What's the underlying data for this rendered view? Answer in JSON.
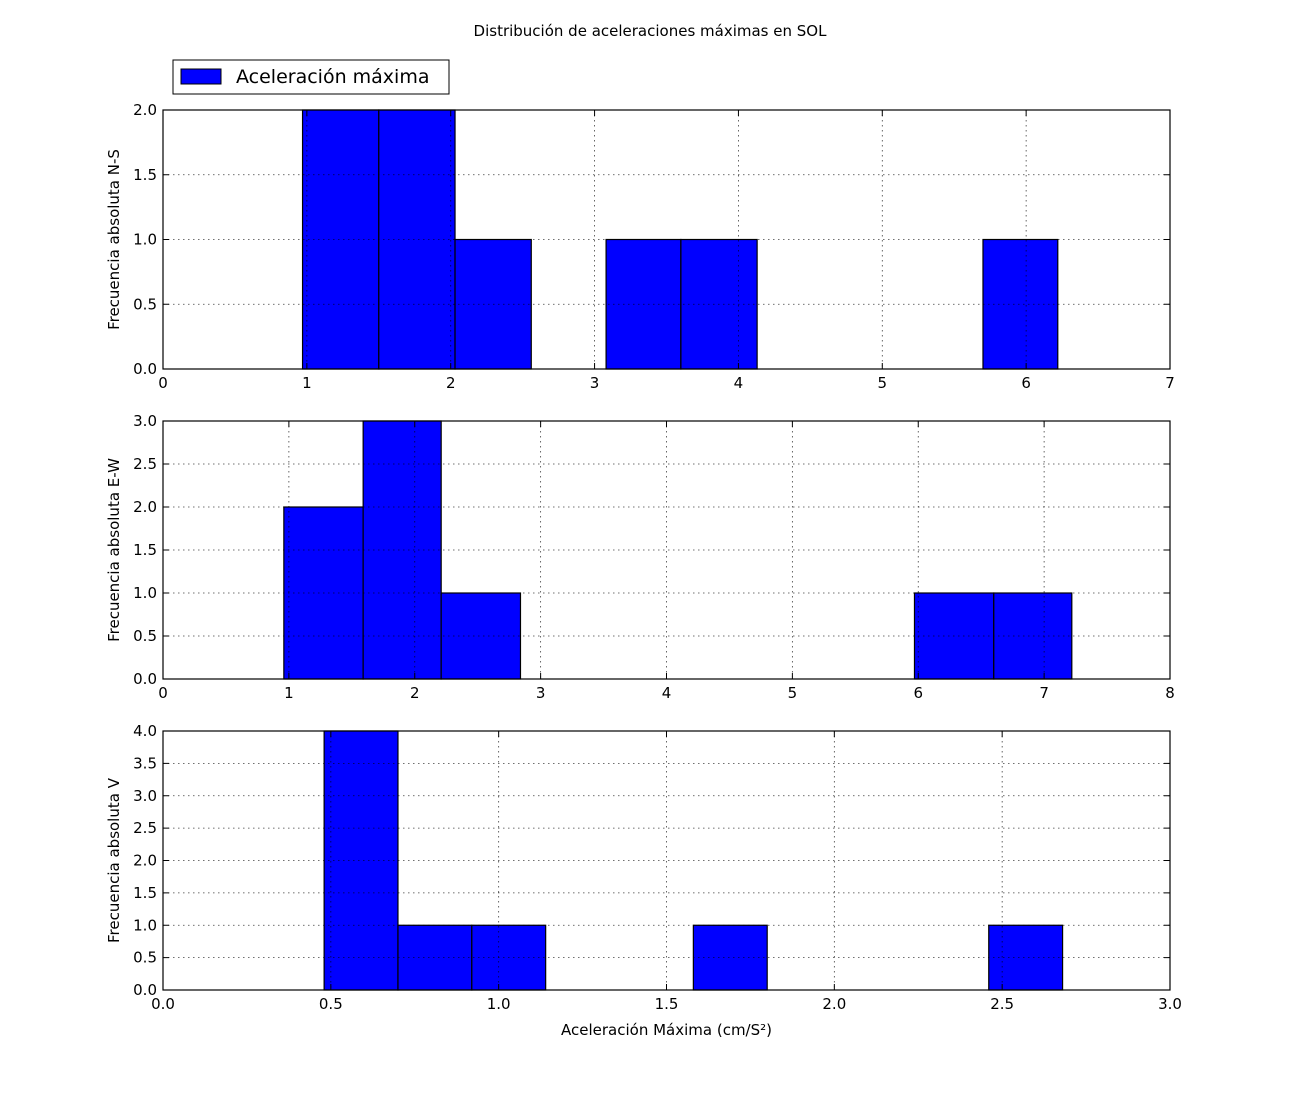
{
  "chart_data": {
    "title": "Distribución de aceleraciones máximas en SOL",
    "type": "bar",
    "legend": {
      "label": "Aceleración máxima",
      "placement": "top-left (outside, above first panel)",
      "color": "#0000ff"
    },
    "bar_color": "#0000ff",
    "edge_color": "#000000",
    "grid": true,
    "panels": [
      {
        "id": "ns",
        "ylabel": "Frecuencia absoluta N-S",
        "xlabel": "",
        "xlim": [
          0,
          7
        ],
        "ylim": [
          0,
          2
        ],
        "xticks": [
          "0",
          "1",
          "2",
          "3",
          "4",
          "5",
          "6",
          "7"
        ],
        "xtick_values": [
          0,
          1,
          2,
          3,
          4,
          5,
          6,
          7
        ],
        "yticks": [
          "0.0",
          "0.5",
          "1.0",
          "1.5",
          "2.0"
        ],
        "ytick_values": [
          0,
          0.5,
          1,
          1.5,
          2
        ],
        "bins": [
          {
            "x0": 0.97,
            "x1": 1.5,
            "value": 2
          },
          {
            "x0": 1.5,
            "x1": 2.03,
            "value": 2
          },
          {
            "x0": 2.03,
            "x1": 2.56,
            "value": 1
          },
          {
            "x0": 2.56,
            "x1": 3.08,
            "value": 0
          },
          {
            "x0": 3.08,
            "x1": 3.6,
            "value": 1
          },
          {
            "x0": 3.6,
            "x1": 4.13,
            "value": 1
          },
          {
            "x0": 4.13,
            "x1": 4.66,
            "value": 0
          },
          {
            "x0": 4.66,
            "x1": 5.18,
            "value": 0
          },
          {
            "x0": 5.18,
            "x1": 5.7,
            "value": 0
          },
          {
            "x0": 5.7,
            "x1": 6.22,
            "value": 1
          }
        ]
      },
      {
        "id": "ew",
        "ylabel": "Frecuencia absoluta E-W",
        "xlabel": "",
        "xlim": [
          0,
          8
        ],
        "ylim": [
          0,
          3
        ],
        "xticks": [
          "0",
          "1",
          "2",
          "3",
          "4",
          "5",
          "6",
          "7",
          "8"
        ],
        "xtick_values": [
          0,
          1,
          2,
          3,
          4,
          5,
          6,
          7,
          8
        ],
        "yticks": [
          "0.0",
          "0.5",
          "1.0",
          "1.5",
          "2.0",
          "2.5",
          "3.0"
        ],
        "ytick_values": [
          0,
          0.5,
          1,
          1.5,
          2,
          2.5,
          3
        ],
        "bins": [
          {
            "x0": 0.96,
            "x1": 1.59,
            "value": 2
          },
          {
            "x0": 1.59,
            "x1": 2.21,
            "value": 3
          },
          {
            "x0": 2.21,
            "x1": 2.84,
            "value": 1
          },
          {
            "x0": 2.84,
            "x1": 3.46,
            "value": 0
          },
          {
            "x0": 3.46,
            "x1": 4.09,
            "value": 0
          },
          {
            "x0": 4.09,
            "x1": 4.72,
            "value": 0
          },
          {
            "x0": 4.72,
            "x1": 5.34,
            "value": 0
          },
          {
            "x0": 5.34,
            "x1": 5.97,
            "value": 0
          },
          {
            "x0": 5.97,
            "x1": 6.6,
            "value": 1
          },
          {
            "x0": 6.6,
            "x1": 7.22,
            "value": 1
          }
        ]
      },
      {
        "id": "v",
        "ylabel": "Frecuencia absoluta V",
        "xlabel": "Aceleración Máxima (cm/S²)",
        "xlim": [
          0,
          3
        ],
        "ylim": [
          0,
          4
        ],
        "xticks": [
          "0.0",
          "0.5",
          "1.0",
          "1.5",
          "2.0",
          "2.5",
          "3.0"
        ],
        "xtick_values": [
          0,
          0.5,
          1,
          1.5,
          2,
          2.5,
          3
        ],
        "yticks": [
          "0.0",
          "0.5",
          "1.0",
          "1.5",
          "2.0",
          "2.5",
          "3.0",
          "3.5",
          "4.0"
        ],
        "ytick_values": [
          0,
          0.5,
          1,
          1.5,
          2,
          2.5,
          3,
          3.5,
          4
        ],
        "bins": [
          {
            "x0": 0.48,
            "x1": 0.7,
            "value": 4
          },
          {
            "x0": 0.7,
            "x1": 0.92,
            "value": 1
          },
          {
            "x0": 0.92,
            "x1": 1.14,
            "value": 1
          },
          {
            "x0": 1.14,
            "x1": 1.36,
            "value": 0
          },
          {
            "x0": 1.36,
            "x1": 1.58,
            "value": 0
          },
          {
            "x0": 1.58,
            "x1": 1.8,
            "value": 1
          },
          {
            "x0": 1.8,
            "x1": 2.02,
            "value": 0
          },
          {
            "x0": 2.02,
            "x1": 2.24,
            "value": 0
          },
          {
            "x0": 2.24,
            "x1": 2.46,
            "value": 0
          },
          {
            "x0": 2.46,
            "x1": 2.68,
            "value": 1
          }
        ]
      }
    ]
  }
}
